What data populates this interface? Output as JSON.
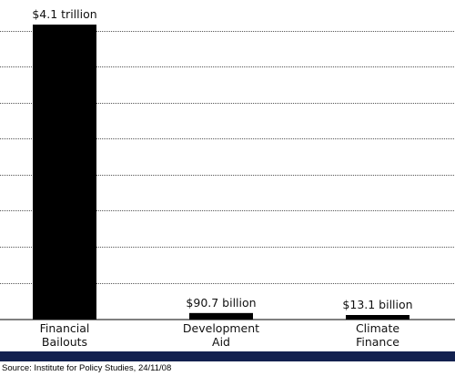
{
  "chart_data": {
    "type": "bar",
    "categories": [
      [
        "Financial",
        "Bailouts"
      ],
      [
        "Development",
        "Aid"
      ],
      [
        "Climate",
        "Finance"
      ]
    ],
    "values": [
      4100,
      90.7,
      13.1
    ],
    "value_unit": "billion USD",
    "data_labels": [
      "$4.1 trillion",
      "$90.7 billion",
      "$13.1 billion"
    ],
    "ylim": [
      0,
      4100
    ],
    "grid": true,
    "bar_color": "#000000"
  },
  "source": {
    "text": "Source: Institute for Policy Studies, 24/11/08",
    "band_color": "#13214f"
  }
}
